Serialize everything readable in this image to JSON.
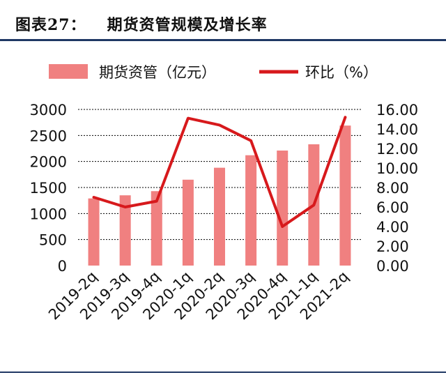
{
  "figure": {
    "label": "图表27：",
    "title": "期货资管规模及增长率"
  },
  "colors": {
    "bar": "#f08080",
    "line": "#d7191c",
    "grid": "#000000",
    "rule": "#1f3864"
  },
  "chart_data": {
    "type": "bar+line",
    "title": "期货资管规模及增长率",
    "categories": [
      "2019-2q",
      "2019-3q",
      "2019-4q",
      "2020-1q",
      "2020-2q",
      "2020-3q",
      "2020-4q",
      "2021-1q",
      "2021-2q"
    ],
    "series": [
      {
        "name": "期货资管（亿元）",
        "type": "bar",
        "axis": "left",
        "values": [
          1290,
          1350,
          1430,
          1650,
          1880,
          2120,
          2210,
          2330,
          2690
        ]
      },
      {
        "name": "环比（%）",
        "type": "line",
        "axis": "right",
        "values": [
          7.0,
          6.0,
          6.6,
          15.1,
          14.4,
          12.8,
          4.0,
          6.2,
          15.2
        ]
      }
    ],
    "y_left": {
      "min": 0,
      "max": 3000,
      "step": 500,
      "tick_labels": [
        "0",
        "500",
        "1000",
        "1500",
        "2000",
        "2500",
        "3000"
      ]
    },
    "y_right": {
      "min": 0,
      "max": 16,
      "step": 2,
      "tick_labels": [
        "0.00",
        "2.00",
        "4.00",
        "6.00",
        "8.00",
        "10.00",
        "12.00",
        "14.00",
        "16.00"
      ]
    },
    "grid": true,
    "legend_position": "top"
  }
}
